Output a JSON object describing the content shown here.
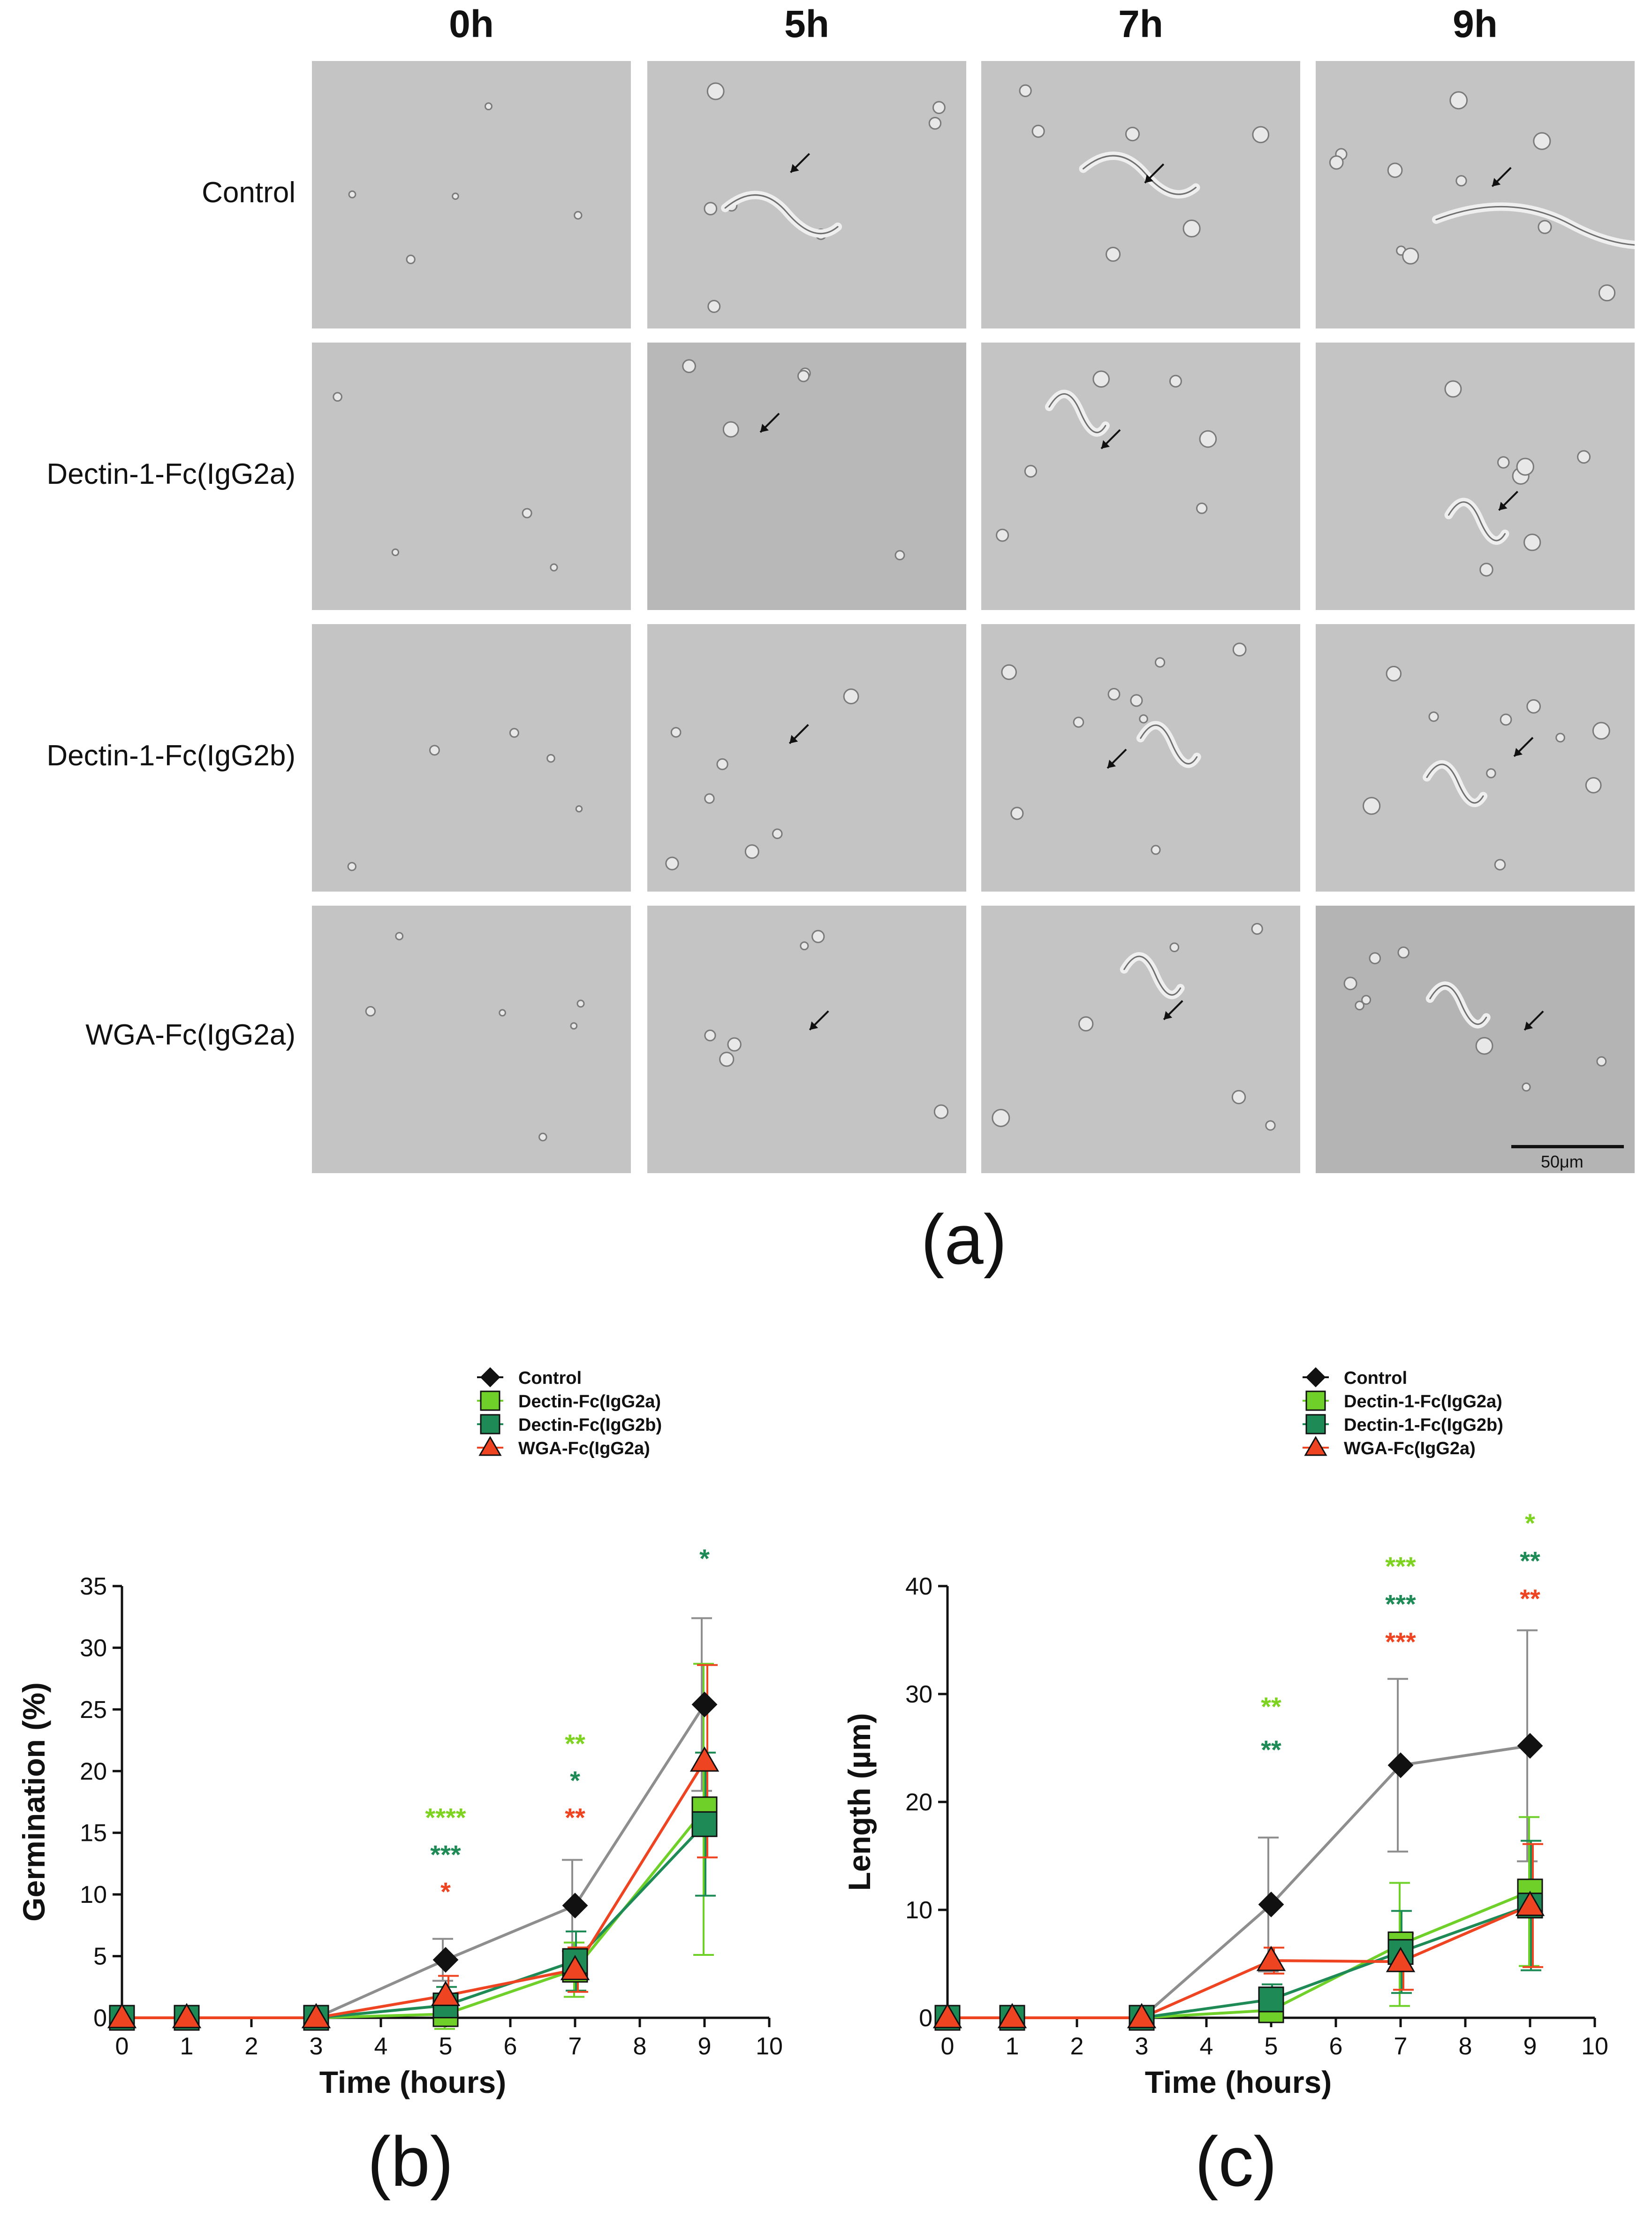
{
  "panel_a": {
    "label": "(a)",
    "time_headers": [
      "0h",
      "5h",
      "7h",
      "9h"
    ],
    "row_labels": [
      "Control",
      "Dectin-1-Fc(IgG2a)",
      "Dectin-1-Fc(IgG2b)",
      "WGA-Fc(IgG2a)"
    ],
    "scale_bar_label": "50μm"
  },
  "panel_b": {
    "label": "(b)"
  },
  "panel_c": {
    "label": "(c)"
  },
  "chart_data": [
    {
      "type": "line",
      "title": "",
      "xlabel": "Time (hours)",
      "ylabel": "Germination (%)",
      "xlim": [
        0,
        10
      ],
      "ylim": [
        0,
        35
      ],
      "xticks": [
        "0",
        "1",
        "2",
        "3",
        "4",
        "5",
        "6",
        "7",
        "8",
        "9",
        "10"
      ],
      "yticks": [
        "0",
        "5",
        "10",
        "15",
        "20",
        "25",
        "30",
        "35"
      ],
      "x": [
        0,
        1,
        3,
        5,
        7,
        9
      ],
      "legend": "top-right",
      "series": [
        {
          "name": "Control",
          "color": "#8e8e8e",
          "marker": "diamond",
          "markerColor": "#111111",
          "values": [
            0,
            0,
            0,
            4.7,
            9.1,
            25.4
          ],
          "err": [
            0,
            0,
            0,
            1.7,
            3.7,
            7.0
          ]
        },
        {
          "name": "Dectin-Fc(IgG2a)",
          "color": "#6fd02a",
          "marker": "square",
          "markerColor": "#6fd02a",
          "values": [
            0,
            0,
            0,
            0.3,
            3.9,
            16.9
          ],
          "err": [
            0,
            0,
            0,
            1.2,
            2.2,
            11.8
          ]
        },
        {
          "name": "Dectin-Fc(IgG2b)",
          "color": "#1e8a55",
          "marker": "square",
          "markerColor": "#1e8a55",
          "values": [
            0,
            0,
            0,
            1.0,
            4.6,
            15.7
          ],
          "err": [
            0,
            0,
            0,
            1.5,
            2.4,
            5.8
          ]
        },
        {
          "name": "WGA-Fc(IgG2a)",
          "color": "#ee4422",
          "marker": "triangle",
          "markerColor": "#ee4422",
          "values": [
            0,
            0,
            0,
            1.8,
            3.9,
            20.8
          ],
          "err": [
            0,
            0,
            0,
            1.6,
            1.8,
            7.8
          ]
        }
      ],
      "annotations": [
        {
          "x": 5,
          "y": 15.5,
          "text": "****",
          "color": "#7ed321"
        },
        {
          "x": 5,
          "y": 12.5,
          "text": "***",
          "color": "#1e8a55"
        },
        {
          "x": 5,
          "y": 9.5,
          "text": "*",
          "color": "#ee4422"
        },
        {
          "x": 7,
          "y": 21.5,
          "text": "**",
          "color": "#7ed321"
        },
        {
          "x": 7,
          "y": 18.5,
          "text": "*",
          "color": "#1e8a55"
        },
        {
          "x": 7,
          "y": 15.5,
          "text": "**",
          "color": "#ee4422"
        },
        {
          "x": 9,
          "y": 36.5,
          "text": "*",
          "color": "#1e8a55"
        }
      ]
    },
    {
      "type": "line",
      "title": "",
      "xlabel": "Time (hours)",
      "ylabel": "Length (µm)",
      "xlim": [
        0,
        10
      ],
      "ylim": [
        0,
        40
      ],
      "xticks": [
        "0",
        "1",
        "2",
        "3",
        "4",
        "5",
        "6",
        "7",
        "8",
        "9",
        "10"
      ],
      "yticks": [
        "0",
        "10",
        "20",
        "30",
        "40"
      ],
      "x": [
        0,
        1,
        3,
        5,
        7,
        9
      ],
      "legend": "top-right",
      "series": [
        {
          "name": "Control",
          "color": "#8e8e8e",
          "marker": "diamond",
          "markerColor": "#111111",
          "values": [
            0,
            0,
            0,
            10.5,
            23.4,
            25.2
          ],
          "err": [
            0,
            0,
            0,
            6.2,
            8.0,
            10.7
          ]
        },
        {
          "name": "Dectin-1-Fc(IgG2a)",
          "color": "#6fd02a",
          "marker": "square",
          "markerColor": "#6fd02a",
          "values": [
            0,
            0,
            0,
            0.7,
            6.8,
            11.7
          ],
          "err": [
            0,
            0,
            0,
            1.0,
            5.7,
            6.9
          ]
        },
        {
          "name": "Dectin-1-Fc(IgG2b)",
          "color": "#1e8a55",
          "marker": "square",
          "markerColor": "#1e8a55",
          "values": [
            0,
            0,
            0,
            1.7,
            6.1,
            10.4
          ],
          "err": [
            0,
            0,
            0,
            1.4,
            3.8,
            6.0
          ]
        },
        {
          "name": "WGA-Fc(IgG2a)",
          "color": "#ee4422",
          "marker": "triangle",
          "markerColor": "#ee4422",
          "values": [
            0,
            0,
            0,
            5.3,
            5.2,
            10.4
          ],
          "err": [
            0,
            0,
            0,
            1.2,
            2.6,
            5.7
          ]
        }
      ],
      "annotations": [
        {
          "x": 5,
          "y": 28.0,
          "text": "**",
          "color": "#7ed321"
        },
        {
          "x": 5,
          "y": 24.0,
          "text": "**",
          "color": "#1e8a55"
        },
        {
          "x": 7,
          "y": 41.0,
          "text": "***",
          "color": "#7ed321"
        },
        {
          "x": 7,
          "y": 37.5,
          "text": "***",
          "color": "#1e8a55"
        },
        {
          "x": 7,
          "y": 34.0,
          "text": "***",
          "color": "#ee4422"
        },
        {
          "x": 9,
          "y": 45.0,
          "text": "*",
          "color": "#7ed321"
        },
        {
          "x": 9,
          "y": 41.5,
          "text": "**",
          "color": "#1e8a55"
        },
        {
          "x": 9,
          "y": 38.0,
          "text": "**",
          "color": "#ee4422"
        }
      ]
    }
  ]
}
